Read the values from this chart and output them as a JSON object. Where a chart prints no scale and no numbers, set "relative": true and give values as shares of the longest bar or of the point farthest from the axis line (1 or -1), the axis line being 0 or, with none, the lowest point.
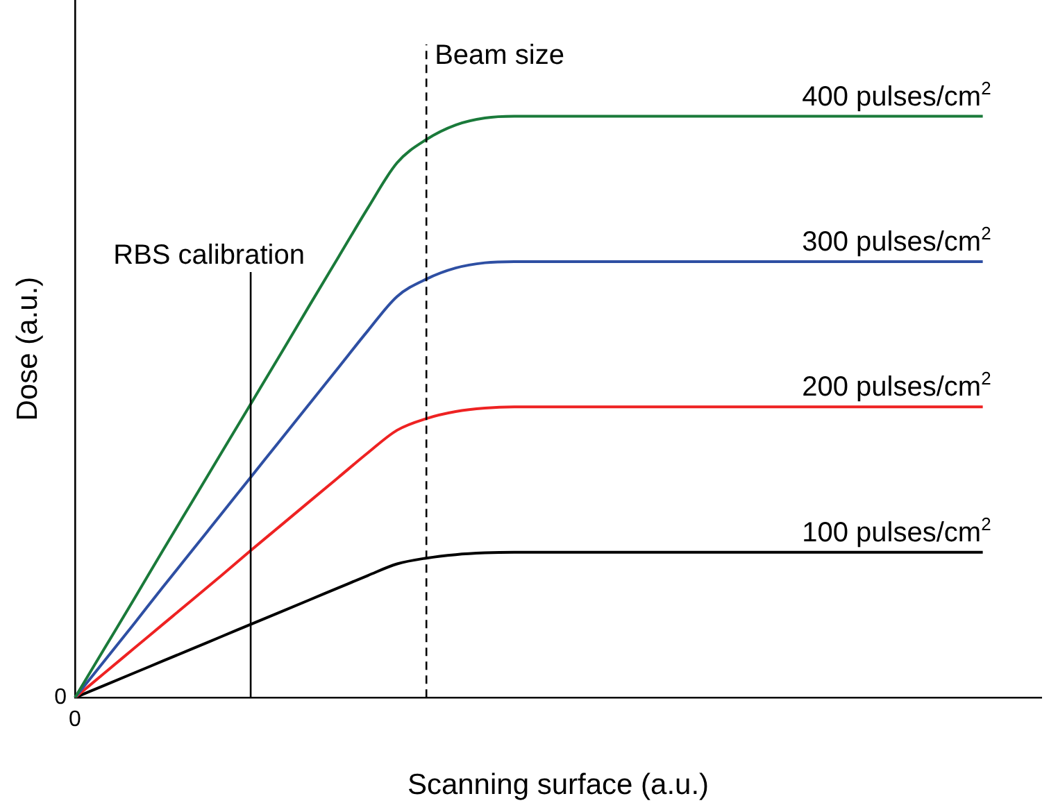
{
  "chart_data": {
    "type": "line",
    "relative": true,
    "xlabel": "Scanning surface (a.u.)",
    "ylabel": "Dose (a.u.)",
    "categories": [
      null,
      null,
      null,
      null,
      null,
      null,
      null,
      null,
      null,
      null,
      null,
      null,
      null,
      null,
      null,
      null,
      null,
      null,
      null,
      null,
      null,
      null,
      null,
      null,
      null,
      null,
      null,
      null,
      null,
      null,
      null,
      null,
      null,
      null
    ],
    "series": [
      {
        "name": "400 pulses/cm$^{2}$",
        "color": "#1a7a3a",
        "values": [
          0,
          0.084,
          0.168,
          0.253,
          0.337,
          0.421,
          0.505,
          0.589,
          0.674,
          0.758,
          0.842,
          0.92,
          0.96,
          0.985,
          0.997,
          1,
          1,
          1,
          1,
          1,
          1,
          1,
          1,
          1,
          1,
          1,
          1,
          1,
          1,
          1,
          1,
          1,
          null,
          null
        ]
      },
      {
        "name": "300 pulses/cm$^{2}$",
        "color": "#2e4fa3",
        "values": [
          0,
          0.063,
          0.126,
          0.19,
          0.253,
          0.316,
          0.379,
          0.442,
          0.505,
          0.568,
          0.631,
          0.69,
          0.72,
          0.739,
          0.748,
          0.75,
          0.75,
          0.75,
          0.75,
          0.75,
          0.75,
          0.75,
          0.75,
          0.75,
          0.75,
          0.75,
          0.75,
          0.75,
          0.75,
          0.75,
          0.75,
          0.75,
          null,
          null
        ]
      },
      {
        "name": "200 pulses/cm$^{2}$",
        "color": "#ee2222",
        "values": [
          0,
          0.042,
          0.084,
          0.126,
          0.168,
          0.21,
          0.253,
          0.295,
          0.337,
          0.379,
          0.421,
          0.46,
          0.48,
          0.492,
          0.498,
          0.5,
          0.5,
          0.5,
          0.5,
          0.5,
          0.5,
          0.5,
          0.5,
          0.5,
          0.5,
          0.5,
          0.5,
          0.5,
          0.5,
          0.5,
          0.5,
          0.5,
          null,
          null
        ]
      },
      {
        "name": "100 pulses/cm$^{2}$",
        "color": "#000000",
        "values": [
          0,
          0.021,
          0.042,
          0.063,
          0.084,
          0.105,
          0.126,
          0.147,
          0.168,
          0.189,
          0.21,
          0.23,
          0.24,
          0.246,
          0.249,
          0.25,
          0.25,
          0.25,
          0.25,
          0.25,
          0.25,
          0.25,
          0.25,
          0.25,
          0.25,
          0.25,
          0.25,
          0.25,
          0.25,
          0.25,
          0.25,
          0.25,
          null,
          null
        ]
      }
    ],
    "annotations": [
      "0",
      "0",
      "RBS calibration",
      "Beam size"
    ],
    "legend": false,
    "marker": "none",
    "line_style": "solid",
    "grid": false
  }
}
